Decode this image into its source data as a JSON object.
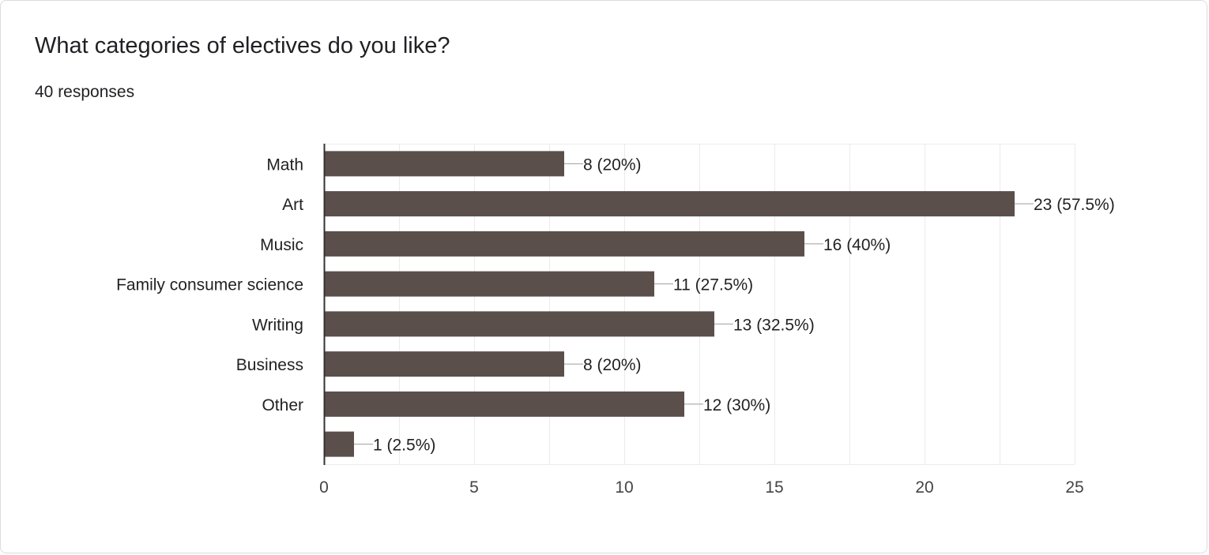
{
  "question": {
    "title": "What categories of electives do you like?",
    "responses": "40 responses"
  },
  "chart_data": {
    "type": "bar",
    "orientation": "horizontal",
    "categories": [
      "Math",
      "Art",
      "Music",
      "Family consumer science",
      "Writing",
      "Business",
      "Other",
      ""
    ],
    "values": [
      8,
      23,
      16,
      11,
      13,
      8,
      12,
      1
    ],
    "data_labels": [
      "8 (20%)",
      "23 (57.5%)",
      "16 (40%)",
      "11 (27.5%)",
      "13 (32.5%)",
      "8 (20%)",
      "12 (30%)",
      "1 (2.5%)"
    ],
    "xlim": [
      0,
      25
    ],
    "x_ticks": [
      0,
      5,
      10,
      15,
      20,
      25
    ],
    "grid": true,
    "colors": {
      "bar": "#5b4f4b",
      "grid": "#ebebeb",
      "axis": "#333333",
      "leader": "#9e9e9e",
      "text": "#222222"
    }
  }
}
